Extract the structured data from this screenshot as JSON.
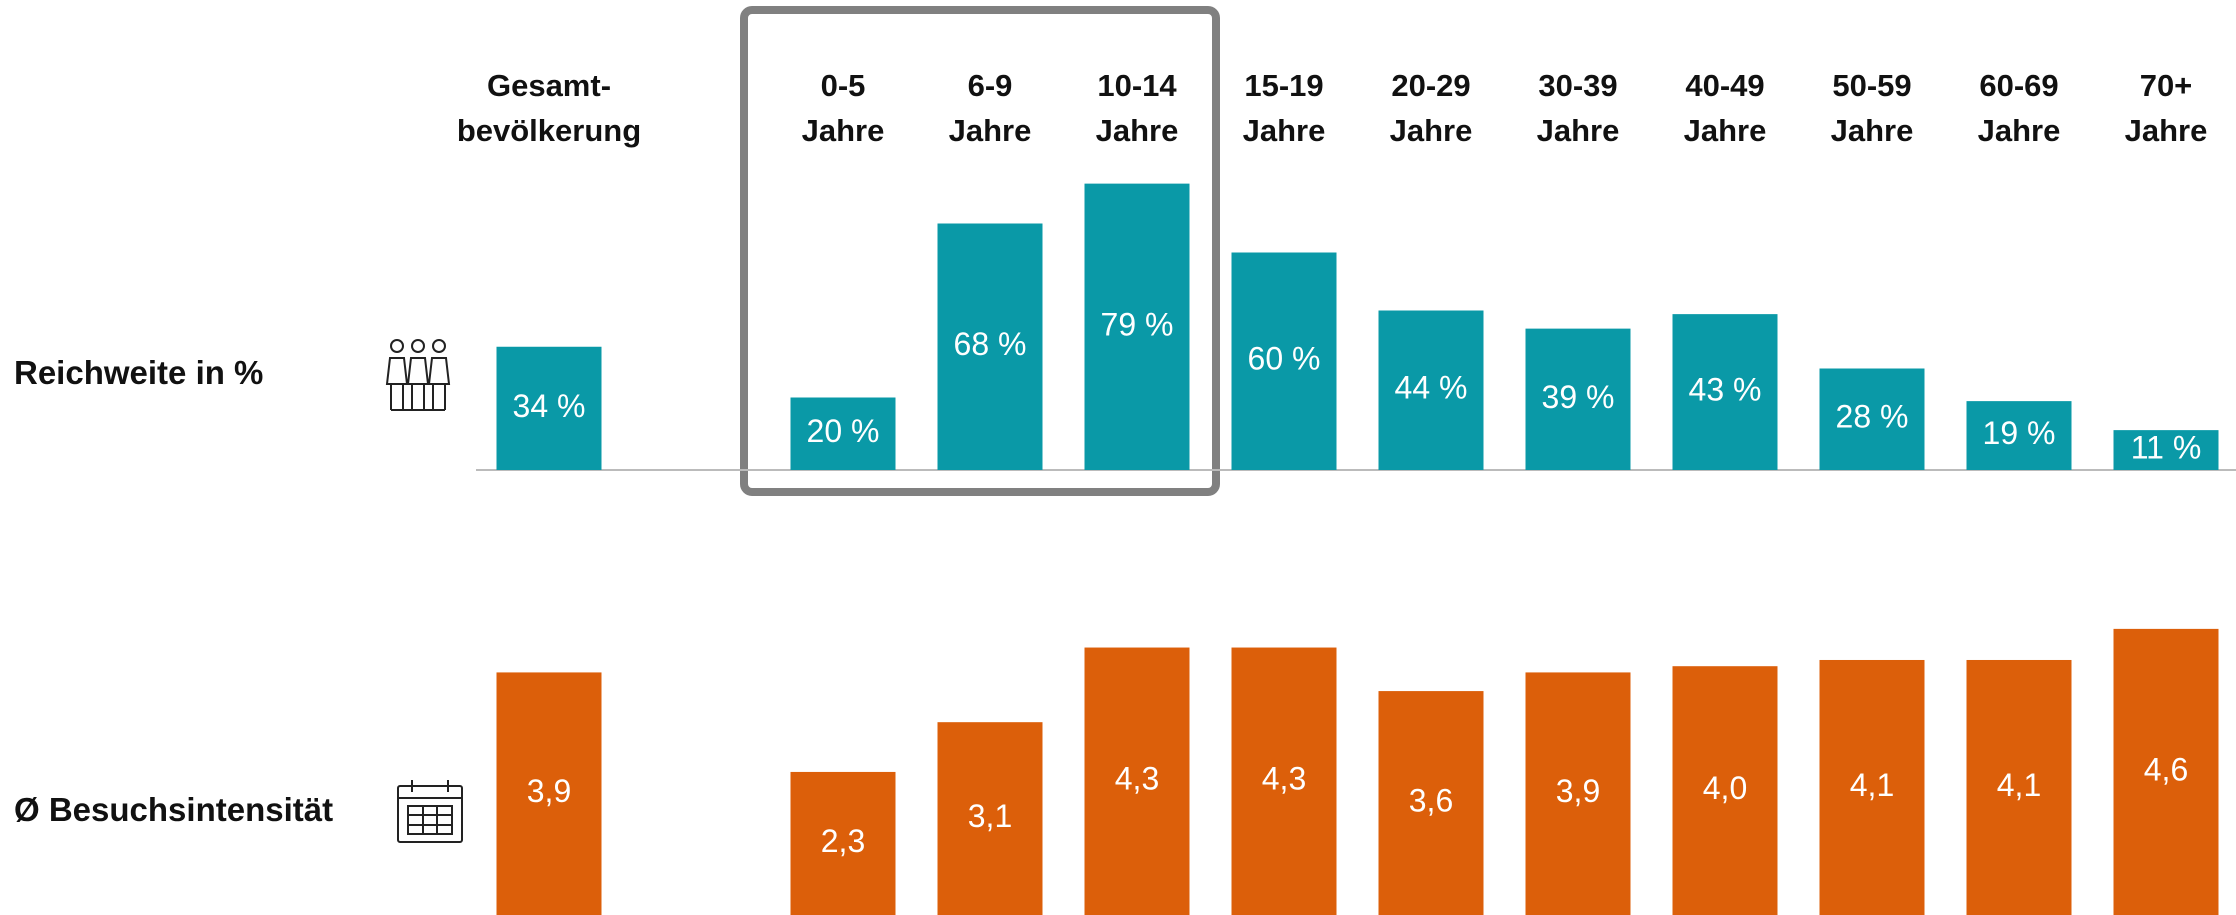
{
  "chart_data": [
    {
      "type": "bar",
      "title": "Reichweite in %",
      "categories": [
        "Gesamt-\nbevölkerung",
        "0-5\nJahre",
        "6-9\nJahre",
        "10-14\nJahre",
        "15-19\nJahre",
        "20-29\nJahre",
        "30-39\nJahre",
        "40-49\nJahre",
        "50-59\nJahre",
        "60-69\nJahre",
        "70+\nJahre"
      ],
      "values": [
        34,
        20,
        68,
        79,
        60,
        44,
        39,
        43,
        28,
        19,
        11
      ],
      "value_labels": [
        "34 %",
        "20 %",
        "68 %",
        "79 %",
        "60 %",
        "44 %",
        "39 %",
        "43 %",
        "28 %",
        "19 %",
        "11 %"
      ],
      "color": "#0a99a7",
      "ylim": [
        0,
        80
      ]
    },
    {
      "type": "bar",
      "title": "Ø Besuchsintensität",
      "values": [
        3.9,
        2.3,
        3.1,
        4.3,
        4.3,
        3.6,
        3.9,
        4.0,
        4.1,
        4.1,
        4.6
      ],
      "value_labels": [
        "3,9",
        "2,3",
        "3,1",
        "4,3",
        "4,3",
        "3,6",
        "3,9",
        "4,0",
        "4,1",
        "4,1",
        "4,6"
      ],
      "color": "#dc5f0a",
      "ylim": [
        0,
        5
      ]
    }
  ]
}
